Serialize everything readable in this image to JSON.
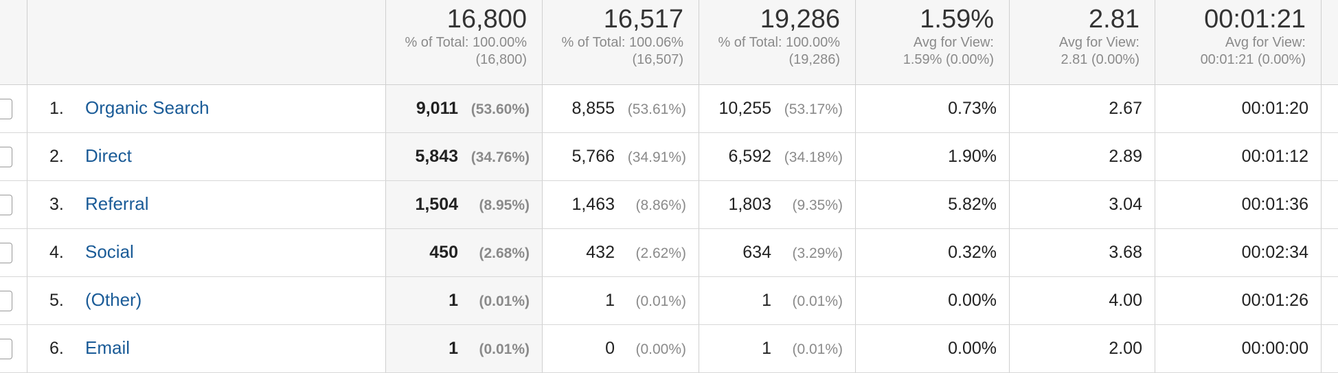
{
  "header": {
    "totals": [
      {
        "value": "16,800",
        "sub1": "% of Total: 100.00%",
        "sub2": "(16,800)"
      },
      {
        "value": "16,517",
        "sub1": "% of Total: 100.06%",
        "sub2": "(16,507)"
      },
      {
        "value": "19,286",
        "sub1": "% of Total: 100.00%",
        "sub2": "(19,286)"
      },
      {
        "value": "1.59%",
        "sub1": "Avg for View:",
        "sub2": "1.59% (0.00%)"
      },
      {
        "value": "2.81",
        "sub1": "Avg for View:",
        "sub2": "2.81 (0.00%)"
      },
      {
        "value": "00:01:21",
        "sub1": "Avg for View:",
        "sub2": "00:01:21 (0.00%)"
      }
    ]
  },
  "rows": [
    {
      "num": "1.",
      "channel": "Organic Search",
      "c1": "9,011",
      "c1p": "(53.60%)",
      "c2": "8,855",
      "c2p": "(53.61%)",
      "c3": "10,255",
      "c3p": "(53.17%)",
      "c4": "0.73%",
      "c5": "2.67",
      "c6": "00:01:20"
    },
    {
      "num": "2.",
      "channel": "Direct",
      "c1": "5,843",
      "c1p": "(34.76%)",
      "c2": "5,766",
      "c2p": "(34.91%)",
      "c3": "6,592",
      "c3p": "(34.18%)",
      "c4": "1.90%",
      "c5": "2.89",
      "c6": "00:01:12"
    },
    {
      "num": "3.",
      "channel": "Referral",
      "c1": "1,504",
      "c1p": "(8.95%)",
      "c2": "1,463",
      "c2p": "(8.86%)",
      "c3": "1,803",
      "c3p": "(9.35%)",
      "c4": "5.82%",
      "c5": "3.04",
      "c6": "00:01:36"
    },
    {
      "num": "4.",
      "channel": "Social",
      "c1": "450",
      "c1p": "(2.68%)",
      "c2": "432",
      "c2p": "(2.62%)",
      "c3": "634",
      "c3p": "(3.29%)",
      "c4": "0.32%",
      "c5": "3.68",
      "c6": "00:02:34"
    },
    {
      "num": "5.",
      "channel": "(Other)",
      "c1": "1",
      "c1p": "(0.01%)",
      "c2": "1",
      "c2p": "(0.01%)",
      "c3": "1",
      "c3p": "(0.01%)",
      "c4": "0.00%",
      "c5": "4.00",
      "c6": "00:01:26"
    },
    {
      "num": "6.",
      "channel": "Email",
      "c1": "1",
      "c1p": "(0.01%)",
      "c2": "0",
      "c2p": "(0.00%)",
      "c3": "1",
      "c3p": "(0.01%)",
      "c4": "0.00%",
      "c5": "2.00",
      "c6": "00:00:00"
    }
  ]
}
